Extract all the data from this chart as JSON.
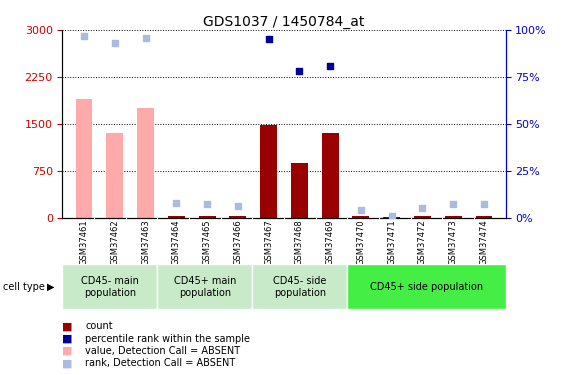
{
  "title": "GDS1037 / 1450784_at",
  "samples": [
    "GSM37461",
    "GSM37462",
    "GSM37463",
    "GSM37464",
    "GSM37465",
    "GSM37466",
    "GSM37467",
    "GSM37468",
    "GSM37469",
    "GSM37470",
    "GSM37471",
    "GSM37472",
    "GSM37473",
    "GSM37474"
  ],
  "bar_values": [
    1900,
    1350,
    1750,
    30,
    30,
    20,
    1480,
    880,
    1350,
    20,
    15,
    18,
    22,
    18
  ],
  "bar_absent": [
    true,
    true,
    true,
    false,
    false,
    false,
    false,
    false,
    false,
    false,
    false,
    false,
    false,
    false
  ],
  "rank_values_pct": [
    97,
    93,
    96,
    8,
    7,
    6,
    95,
    78,
    81,
    4,
    1,
    5,
    7,
    7
  ],
  "rank_absent": [
    true,
    true,
    true,
    true,
    true,
    true,
    false,
    false,
    false,
    true,
    true,
    true,
    true,
    true
  ],
  "ylim_left": [
    0,
    3000
  ],
  "ylim_right": [
    0,
    100
  ],
  "yticks_left": [
    0,
    750,
    1500,
    2250,
    3000
  ],
  "yticks_right": [
    0,
    25,
    50,
    75,
    100
  ],
  "group_labels": [
    "CD45- main\npopulation",
    "CD45+ main\npopulation",
    "CD45- side\npopulation",
    "CD45+ side population"
  ],
  "group_starts": [
    0,
    3,
    6,
    9
  ],
  "group_ends": [
    3,
    6,
    9,
    14
  ],
  "group_colors": [
    "#c8eac8",
    "#c8eac8",
    "#c8eac8",
    "#44ee44"
  ],
  "bar_color_present": "#990000",
  "bar_color_absent": "#ffaaaa",
  "rank_color_present": "#000099",
  "rank_color_absent": "#aabbdd",
  "bar_width": 0.55,
  "background_color": "#ffffff",
  "left_axis_color": "#cc0000",
  "right_axis_color": "#0000cc",
  "legend_items": [
    {
      "color": "#990000",
      "label": "count"
    },
    {
      "color": "#000099",
      "label": "percentile rank within the sample"
    },
    {
      "color": "#ffaaaa",
      "label": "value, Detection Call = ABSENT"
    },
    {
      "color": "#aabbdd",
      "label": "rank, Detection Call = ABSENT"
    }
  ]
}
